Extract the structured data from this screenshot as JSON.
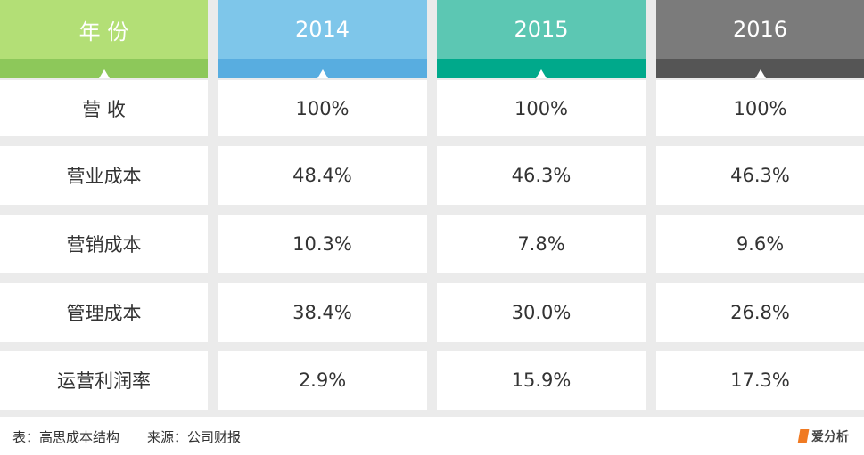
{
  "header": {
    "columns": [
      "年 份",
      "2014",
      "2015",
      "2016"
    ]
  },
  "table": {
    "rows": [
      [
        "营 收",
        "100%",
        "100%",
        "100%"
      ],
      [
        "营业成本",
        "48.4%",
        "46.3%",
        "46.3%"
      ],
      [
        "营销成本",
        "10.3%",
        "7.8%",
        "9.6%"
      ],
      [
        "管理成本",
        "38.4%",
        "30.0%",
        "26.8%"
      ],
      [
        "运营利润率",
        "2.9%",
        "15.9%",
        "17.3%"
      ]
    ]
  },
  "footer": {
    "caption": "表：高思成本结构",
    "source": "来源：公司财报",
    "logo": "爱分析"
  }
}
